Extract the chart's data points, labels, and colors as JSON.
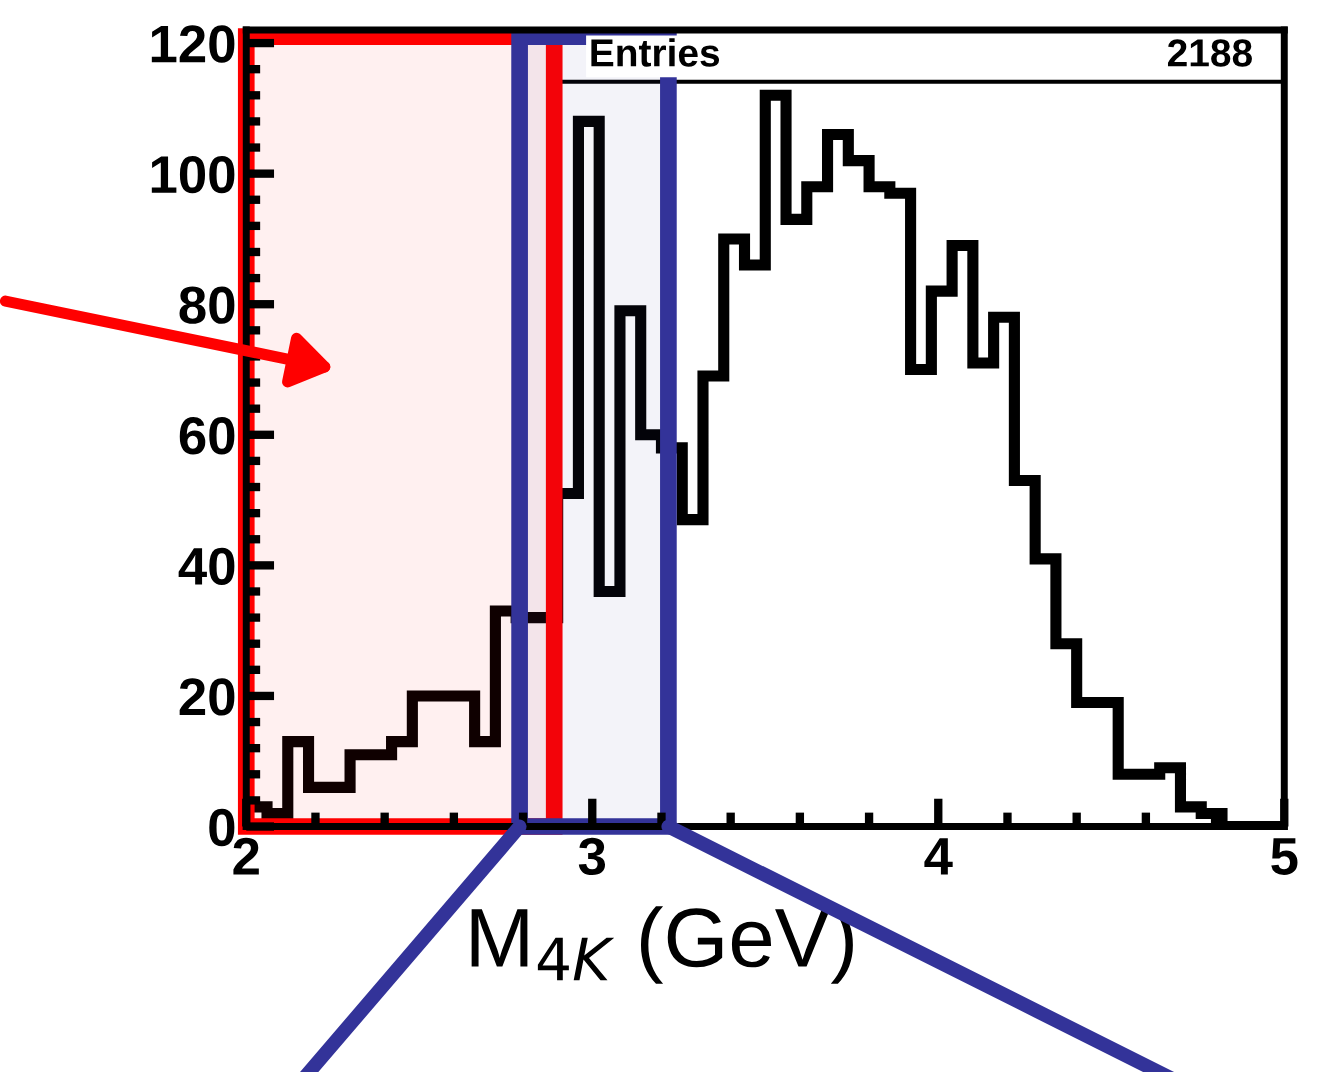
{
  "chart_data": {
    "type": "histogram",
    "xlabel": "M$_{4K}$ (GeV)",
    "bins": [
      2.0,
      2.06,
      2.12,
      2.18,
      2.24,
      2.3,
      2.36,
      2.42,
      2.48,
      2.54,
      2.6,
      2.66,
      2.72,
      2.78,
      2.84,
      2.9,
      2.96,
      3.02,
      3.08,
      3.14,
      3.2,
      3.26,
      3.32,
      3.38,
      3.44,
      3.5,
      3.56,
      3.62,
      3.68,
      3.74,
      3.8,
      3.86,
      3.92,
      3.98,
      4.04,
      4.1,
      4.16,
      4.22,
      4.28,
      4.34,
      4.4,
      4.46,
      4.52,
      4.58,
      4.64,
      4.7,
      4.76,
      4.82,
      4.88,
      4.94,
      5.0
    ],
    "values": [
      3,
      2,
      13,
      6,
      6,
      11,
      11,
      13,
      20,
      20,
      20,
      13,
      33,
      32,
      32,
      51,
      108,
      36,
      79,
      60,
      58,
      47,
      69,
      90,
      86,
      112,
      93,
      98,
      106,
      102,
      98,
      97,
      70,
      82,
      89,
      71,
      78,
      53,
      41,
      28,
      19,
      19,
      8,
      8,
      9,
      3,
      2,
      0,
      0,
      0
    ],
    "color": "#000000",
    "xlim": [
      2,
      5
    ],
    "xticks": [
      2,
      3,
      4,
      5
    ],
    "ylim": [
      0,
      122
    ],
    "yticks": [
      0,
      20,
      40,
      60,
      80,
      100,
      120
    ],
    "grid": false,
    "annotations": [
      "Entries",
      "2188"
    ],
    "bands": [
      {
        "axis": "x",
        "from": 2.0,
        "to": 2.89,
        "label": null,
        "color": "#ff0000"
      },
      {
        "axis": "x",
        "from": 2.79,
        "to": 3.22,
        "label": null,
        "color": "#333399"
      }
    ]
  }
}
